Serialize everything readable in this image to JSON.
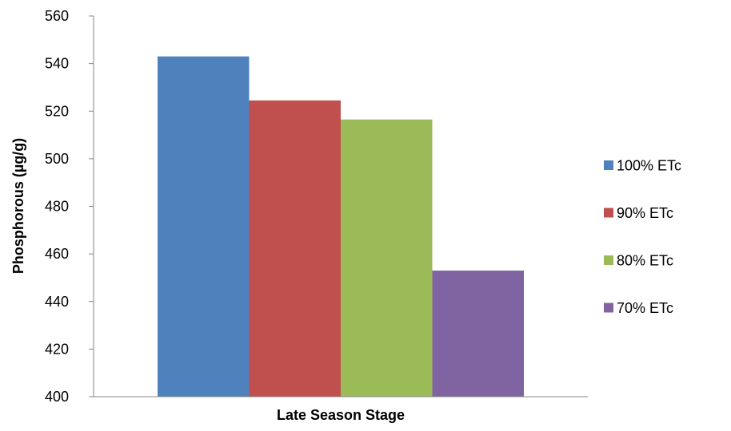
{
  "chart_data": {
    "type": "bar",
    "title": "",
    "xlabel": "Late Season Stage",
    "ylabel": "Phosphorous (µg/g)",
    "ylim": [
      400,
      560
    ],
    "yticks": [
      400,
      420,
      440,
      460,
      480,
      500,
      520,
      540,
      560
    ],
    "categories": [
      "Late Season Stage"
    ],
    "series": [
      {
        "name": "100% ETc",
        "values": [
          543
        ],
        "color": "#4F81BD"
      },
      {
        "name": "90% ETc",
        "values": [
          524.5
        ],
        "color": "#C0504D"
      },
      {
        "name": "80% ETc",
        "values": [
          516.5
        ],
        "color": "#9BBB59"
      },
      {
        "name": "70% ETc",
        "values": [
          453
        ],
        "color": "#8064A2"
      }
    ],
    "grid": false,
    "legend_position": "right"
  }
}
